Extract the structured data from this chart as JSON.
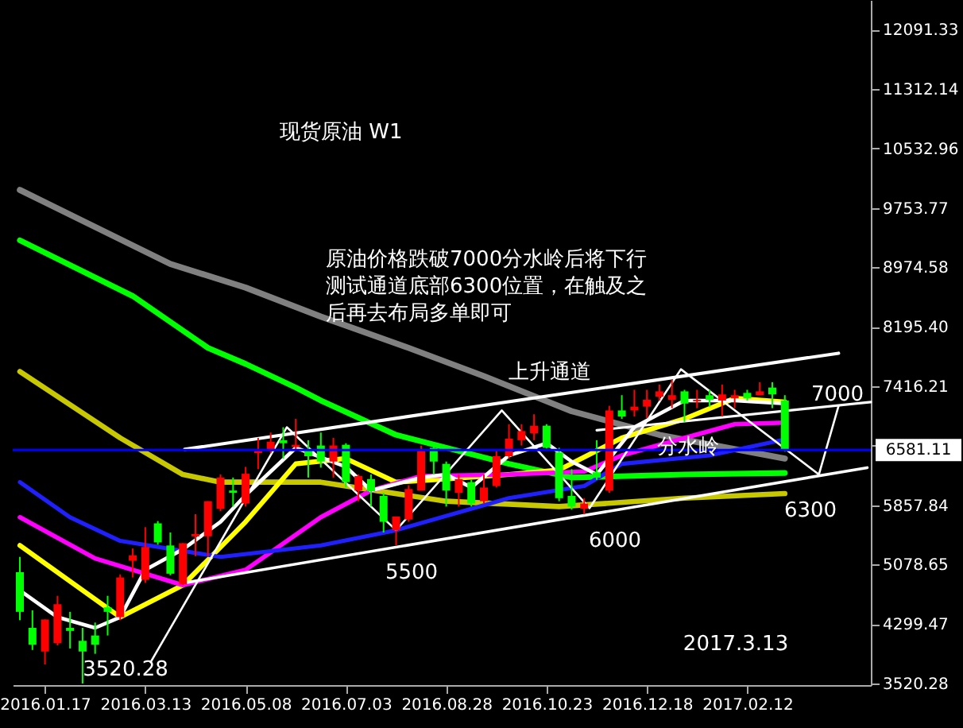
{
  "chart_data": {
    "type": "candlestick",
    "title": "现货原油 W1",
    "x": [
      "2016-01-03",
      "2016-01-10",
      "2016-01-17",
      "2016-01-24",
      "2016-01-31",
      "2016-02-07",
      "2016-02-14",
      "2016-02-21",
      "2016-02-28",
      "2016-03-06",
      "2016-03-13",
      "2016-03-20",
      "2016-03-27",
      "2016-04-03",
      "2016-04-10",
      "2016-04-17",
      "2016-04-24",
      "2016-05-01",
      "2016-05-08",
      "2016-05-15",
      "2016-05-22",
      "2016-05-29",
      "2016-06-05",
      "2016-06-12",
      "2016-06-19",
      "2016-06-26",
      "2016-07-03",
      "2016-07-10",
      "2016-07-17",
      "2016-07-24",
      "2016-07-31",
      "2016-08-07",
      "2016-08-14",
      "2016-08-21",
      "2016-08-28",
      "2016-09-04",
      "2016-09-11",
      "2016-09-18",
      "2016-09-25",
      "2016-10-02",
      "2016-10-09",
      "2016-10-16",
      "2016-10-23",
      "2016-10-30",
      "2016-11-06",
      "2016-11-13",
      "2016-11-20",
      "2016-11-27",
      "2016-12-04",
      "2016-12-11",
      "2016-12-18",
      "2016-12-25",
      "2017-01-01",
      "2017-01-08",
      "2017-01-15",
      "2017-01-22",
      "2017-01-29",
      "2017-02-05",
      "2017-02-12",
      "2017-02-19",
      "2017-02-26",
      "2017-03-05"
    ],
    "ohlc": [
      [
        4980,
        5180,
        4350,
        4460
      ],
      [
        4250,
        4480,
        3960,
        4030
      ],
      [
        3940,
        4360,
        3770,
        4360
      ],
      [
        4050,
        4670,
        4020,
        4560
      ],
      [
        4250,
        4460,
        3980,
        4210
      ],
      [
        4080,
        4250,
        3520.28,
        3940
      ],
      [
        4150,
        4320,
        3910,
        4030
      ],
      [
        4520,
        4670,
        4150,
        4460
      ],
      [
        4390,
        4950,
        4350,
        4910
      ],
      [
        5130,
        5290,
        4910,
        5200
      ],
      [
        4880,
        5570,
        4840,
        5310
      ],
      [
        5620,
        5650,
        5340,
        5370
      ],
      [
        5330,
        5500,
        4940,
        4960
      ],
      [
        4820,
        5360,
        4810,
        5360
      ],
      [
        5450,
        5740,
        5190,
        5480
      ],
      [
        5450,
        5910,
        5190,
        5910
      ],
      [
        5810,
        6260,
        5780,
        6220
      ],
      [
        6050,
        6220,
        5840,
        6020
      ],
      [
        5880,
        6360,
        5840,
        6270
      ],
      [
        6540,
        6740,
        6330,
        6570
      ],
      [
        6570,
        6810,
        6540,
        6690
      ],
      [
        6710,
        6880,
        6470,
        6670
      ],
      [
        6620,
        6990,
        6570,
        6650
      ],
      [
        6570,
        6710,
        6220,
        6500
      ],
      [
        6640,
        6810,
        6350,
        6430
      ],
      [
        6430,
        6740,
        6220,
        6640
      ],
      [
        6650,
        6670,
        6090,
        6160
      ],
      [
        6050,
        6260,
        5910,
        6240
      ],
      [
        6200,
        6260,
        5840,
        6040
      ],
      [
        5980,
        6020,
        5500,
        5640
      ],
      [
        5530,
        5710,
        5330,
        5710
      ],
      [
        5670,
        6120,
        5640,
        6070
      ],
      [
        6050,
        6640,
        6050,
        6570
      ],
      [
        6610,
        6670,
        6260,
        6430
      ],
      [
        6400,
        6430,
        5840,
        6050
      ],
      [
        6020,
        6260,
        5840,
        6200
      ],
      [
        6160,
        6190,
        5840,
        5880
      ],
      [
        5910,
        6260,
        5880,
        6090
      ],
      [
        6110,
        6570,
        6090,
        6500
      ],
      [
        6500,
        6920,
        6470,
        6730
      ],
      [
        6710,
        6920,
        6640,
        6830
      ],
      [
        6800,
        7050,
        6710,
        6900
      ],
      [
        6900,
        6920,
        6600,
        6610
      ],
      [
        6550,
        6610,
        5910,
        5950
      ],
      [
        5980,
        6330,
        5800,
        5840
      ],
      [
        5810,
        5950,
        5740,
        5880
      ],
      [
        6290,
        6710,
        6190,
        6220
      ],
      [
        6050,
        7160,
        6020,
        7100
      ],
      [
        7100,
        7300,
        6990,
        7020
      ],
      [
        7100,
        7370,
        7020,
        7150
      ],
      [
        7150,
        7370,
        7000,
        7240
      ],
      [
        7280,
        7440,
        7230,
        7350
      ],
      [
        7240,
        7500,
        7130,
        7300
      ],
      [
        7350,
        7370,
        6950,
        7190
      ],
      [
        7220,
        7370,
        7130,
        7240
      ],
      [
        7300,
        7370,
        7150,
        7240
      ],
      [
        7230,
        7440,
        7020,
        7310
      ],
      [
        7260,
        7370,
        7130,
        7300
      ],
      [
        7330,
        7370,
        7230,
        7260
      ],
      [
        7300,
        7470,
        7300,
        7350
      ],
      [
        7400,
        7470,
        7130,
        7310
      ],
      [
        7230,
        7300,
        6560,
        6581.11
      ]
    ],
    "colors": [
      "#00ff00",
      "#00ff00",
      "#ff0000",
      "#ff0000",
      "#00ff00",
      "#00ff00",
      "#00ff00",
      "#00ff00",
      "#ff0000",
      "#ff0000",
      "#ff0000",
      "#00ff00",
      "#00ff00",
      "#ff0000",
      "#ff0000",
      "#ff0000",
      "#ff0000",
      "#00ff00",
      "#ff0000",
      "#ff0000",
      "#ff0000",
      "#00ff00",
      "#ff0000",
      "#00ff00",
      "#00ff00",
      "#ff0000",
      "#00ff00",
      "#ff0000",
      "#00ff00",
      "#00ff00",
      "#ff0000",
      "#ff0000",
      "#ff0000",
      "#00ff00",
      "#00ff00",
      "#ff0000",
      "#00ff00",
      "#ff0000",
      "#ff0000",
      "#ff0000",
      "#ff0000",
      "#ff0000",
      "#00ff00",
      "#00ff00",
      "#00ff00",
      "#ff0000",
      "#00ff00",
      "#ff0000",
      "#00ff00",
      "#ff0000",
      "#ff0000",
      "#ff0000",
      "#ff0000",
      "#00ff00",
      "#ff0000",
      "#00ff00",
      "#ff0000",
      "#ff0000",
      "#00ff00",
      "#ff0000",
      "#00ff00",
      "#00ff00"
    ],
    "series": [
      {
        "type": "line",
        "color": "#808080",
        "x": [
          "2016-01-03",
          "2016-03-27",
          "2016-05-08",
          "2016-06-19",
          "2016-08-07",
          "2016-09-18",
          "2016-11-06",
          "2016-12-25",
          "2017-03-05"
        ],
        "values": [
          9990,
          9020,
          8710,
          8330,
          7920,
          7550,
          7090,
          6780,
          6470
        ]
      },
      {
        "type": "line",
        "color": "#00ff00",
        "x": [
          "2016-01-03",
          "2016-03-06",
          "2016-04-17",
          "2016-05-08",
          "2016-06-05",
          "2016-06-19",
          "2016-07-31",
          "2016-10-02",
          "2016-11-06",
          "2017-01-08",
          "2017-03-05"
        ],
        "values": [
          9330,
          8600,
          7920,
          7710,
          7400,
          7230,
          6780,
          6400,
          6220,
          6260,
          6280
        ]
      },
      {
        "type": "line",
        "color": "#c8c800",
        "x": [
          "2016-01-03",
          "2016-02-28",
          "2016-04-03",
          "2016-04-24",
          "2016-06-19",
          "2016-08-28",
          "2016-10-30",
          "2017-01-08",
          "2017-03-05"
        ],
        "values": [
          7610,
          6740,
          6260,
          6160,
          6160,
          5910,
          5840,
          5950,
          6010
        ]
      },
      {
        "type": "line",
        "color": "#ffff00",
        "x": [
          "2016-01-03",
          "2016-02-28",
          "2016-04-03",
          "2016-05-08",
          "2016-06-05",
          "2016-07-03",
          "2016-07-31",
          "2016-08-28",
          "2016-10-02",
          "2016-10-30",
          "2016-12-04",
          "2017-01-08",
          "2017-02-05",
          "2017-03-05"
        ],
        "values": [
          5330,
          4390,
          4810,
          5640,
          6400,
          6470,
          6160,
          6200,
          6260,
          6320,
          6740,
          6990,
          7260,
          7210
        ]
      },
      {
        "type": "line",
        "color": "#ff00ff",
        "x": [
          "2016-01-03",
          "2016-02-14",
          "2016-04-03",
          "2016-05-08",
          "2016-06-19",
          "2016-07-17",
          "2016-08-14",
          "2016-10-02",
          "2016-11-13",
          "2016-12-04",
          "2017-01-08",
          "2017-02-05",
          "2017-03-05"
        ],
        "values": [
          5700,
          5160,
          4810,
          5010,
          5700,
          6050,
          6240,
          6260,
          6300,
          6510,
          6740,
          6920,
          6940
        ]
      },
      {
        "type": "line",
        "color": "#2020ff",
        "x": [
          "2016-01-03",
          "2016-01-31",
          "2016-02-28",
          "2016-04-24",
          "2016-06-19",
          "2016-07-31",
          "2016-10-02",
          "2016-11-13",
          "2016-12-04",
          "2017-01-22",
          "2017-03-05"
        ],
        "values": [
          6160,
          5700,
          5390,
          5180,
          5330,
          5530,
          5950,
          6110,
          6400,
          6510,
          6720
        ]
      },
      {
        "type": "line",
        "color": "#ffffff",
        "x": [
          "2016-01-03",
          "2016-01-24",
          "2016-02-14",
          "2016-02-28",
          "2016-03-13",
          "2016-04-03",
          "2016-04-24",
          "2016-05-08",
          "2016-06-05",
          "2016-07-03",
          "2016-07-17",
          "2016-08-14",
          "2016-08-28",
          "2016-09-11",
          "2016-10-02",
          "2016-10-23",
          "2016-11-06",
          "2016-11-20",
          "2016-12-11",
          "2017-01-08",
          "2017-02-05",
          "2017-03-05"
        ],
        "values": [
          4740,
          4390,
          4250,
          4390,
          5010,
          5280,
          5640,
          5990,
          6610,
          6360,
          6050,
          6220,
          6260,
          6090,
          6510,
          6670,
          6430,
          6260,
          6880,
          7230,
          7230,
          7190
        ]
      },
      {
        "type": "line",
        "color": "#ffffff",
        "x": [
          "2016-04-04",
          "2017-04-04"
        ],
        "values": [
          6590,
          7850
        ]
      },
      {
        "type": "line",
        "color": "#ffffff",
        "x": [
          "2016-04-04",
          "2017-04-20"
        ],
        "values": [
          4840,
          6350
        ]
      },
      {
        "type": "line",
        "color": "#ffffff",
        "x": [
          "2016-11-20",
          "2017-04-22"
        ],
        "values": [
          6840,
          7210
        ]
      },
      {
        "type": "line",
        "color": "#ffffff",
        "x": [
          "2016-03-16",
          "2016-05-31",
          "2016-07-31",
          "2016-09-28",
          "2016-11-16",
          "2017-01-06",
          "2017-03-24",
          "2017-04-04"
        ],
        "values": [
          3800,
          6880,
          5530,
          7100,
          5820,
          7640,
          6260,
          7160
        ]
      }
    ],
    "xlim": [
      "2015-12-30",
      "2017-04-22"
    ],
    "xticks": [
      {
        "value": "2016-01-17",
        "label": "2016.01.17"
      },
      {
        "value": "2016-03-13",
        "label": "2016.03.13"
      },
      {
        "value": "2016-05-08",
        "label": "2016.05.08"
      },
      {
        "value": "2016-07-03",
        "label": "2016.07.03"
      },
      {
        "value": "2016-08-28",
        "label": "2016.08.28"
      },
      {
        "value": "2016-10-23",
        "label": "2016.10.23"
      },
      {
        "value": "2016-12-18",
        "label": "2016.12.18"
      },
      {
        "value": "2017-02-12",
        "label": "2017.02.12"
      }
    ],
    "ylim": [
      3500,
      12480
    ],
    "yticks": [
      3520.28,
      4299.47,
      5078.65,
      5857.84,
      {
        "value": 6637.03,
        "label": null
      },
      7416.21,
      {
        "value": 8195.4,
        "label": "8195.40"
      },
      8974.58,
      9753.77,
      10532.96,
      11312.14,
      12091.33
    ],
    "ref_lines": [
      {
        "axis": "y",
        "value": 6581.11,
        "label": "6581.11",
        "color": "#0000ff"
      }
    ],
    "annotations": [
      "原油价格跌破7000分水岭后将下行测试通道底部6300位置，在触及之后再去布局多单即可",
      "2017.3.13",
      "上升通道",
      "分水岭",
      "7000",
      "6300",
      "6000",
      "5500",
      "3520.28"
    ]
  }
}
